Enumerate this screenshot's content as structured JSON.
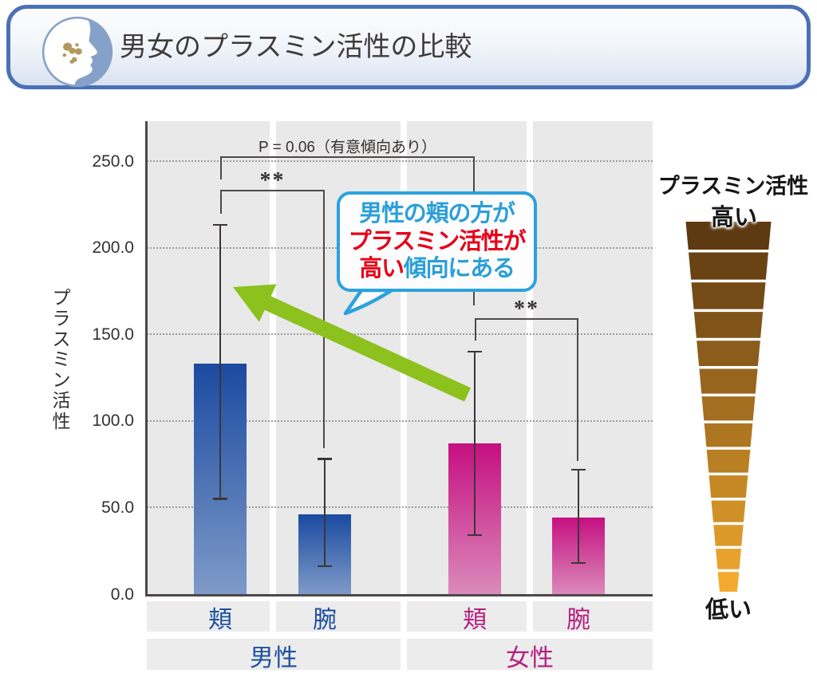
{
  "header": {
    "title": "男女のプラスミン活性の比較",
    "icon": "face-profile-with-spots-icon",
    "border_color": "#4a71b6",
    "icon_circle_color": "#86a1c9",
    "icon_spot_color": "#b3985f"
  },
  "chart_data": {
    "type": "bar",
    "title": "男女のプラスミン活性の比較",
    "ylabel": "プラスミン活性",
    "ylim": [
      0,
      250
    ],
    "yticks": [
      0,
      50,
      100,
      150,
      200,
      250
    ],
    "ytick_labels": [
      "0.0",
      "50.0",
      "100.0",
      "150.0",
      "200.0",
      "250.0"
    ],
    "grid": "dotted horizontal",
    "categories": [
      "頬",
      "腕",
      "頬",
      "腕"
    ],
    "series": [
      {
        "name": "男性",
        "sites": [
          "頬",
          "腕"
        ],
        "values": [
          133,
          46
        ],
        "error_low": [
          55,
          16
        ],
        "error_high": [
          213,
          78
        ],
        "bar_gradient": [
          "#1a4aa0",
          "#7e9ac8"
        ],
        "label_color": "#1c4fa0"
      },
      {
        "name": "女性",
        "sites": [
          "頬",
          "腕"
        ],
        "values": [
          87,
          44
        ],
        "error_low": [
          34,
          18
        ],
        "error_high": [
          140,
          72
        ],
        "bar_gradient": [
          "#c50f80",
          "#db8abb"
        ],
        "label_color": "#b61e80"
      }
    ],
    "significance": [
      {
        "label": "P = 0.06（有意傾向あり）",
        "between": [
          "男性 頬",
          "女性 頬"
        ]
      },
      {
        "label": "**",
        "between": [
          "男性 頬",
          "男性 腕"
        ]
      },
      {
        "label": "**",
        "between": [
          "女性 頬",
          "女性 腕"
        ]
      }
    ]
  },
  "callout": {
    "lines": [
      [
        {
          "text": "男性の頬の方が",
          "color": "blue"
        }
      ],
      [
        {
          "text": "プラスミン活性が",
          "color": "red"
        }
      ],
      [
        {
          "text": "高い",
          "color": "red"
        },
        {
          "text": "傾向にある",
          "color": "blue"
        }
      ]
    ],
    "colors": {
      "blue": "#2b9fd8",
      "red": "#e60019",
      "border": "#2ba2de"
    }
  },
  "arrow": {
    "color": "#8cc11e",
    "meaning": "points-from-callout-to-male-cheek-bar"
  },
  "funnel": {
    "title": "プラスミン活性",
    "top_label": "高い",
    "bottom_label": "低い",
    "segment_colors": [
      "#5d3a12",
      "#694314",
      "#744b16",
      "#805418",
      "#8b5c1b",
      "#97651d",
      "#a26e1f",
      "#ae7621",
      "#b97f23",
      "#c58825",
      "#d09028",
      "#dc992a",
      "#e7a12c",
      "#f3aa2e"
    ]
  }
}
